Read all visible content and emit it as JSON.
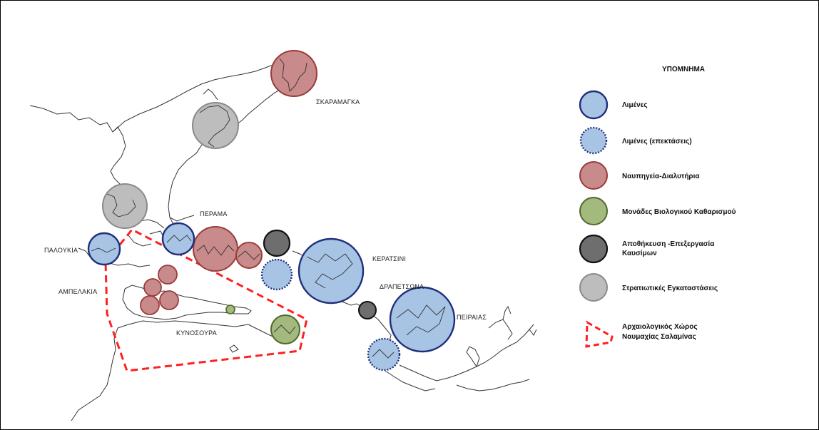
{
  "legend": {
    "title": "ΥΠΟΜΝΗΜΑ",
    "items": [
      {
        "label": "Λιμένες",
        "symbol": "circle-solid",
        "fill": "#a7c4e5",
        "stroke": "#1f2f7a"
      },
      {
        "label": "Λιμένες (επεκτάσεις)",
        "symbol": "circle-dotted",
        "fill": "#a7c4e5",
        "stroke": "#1f2f7a"
      },
      {
        "label": "Ναυπηγεία-Διαλυτήρια",
        "symbol": "circle-solid",
        "fill": "#c88a8a",
        "stroke": "#9a3b3b"
      },
      {
        "label": "Μονάδες Βιολογικού  Καθαρισμού",
        "symbol": "circle-solid",
        "fill": "#a3b97e",
        "stroke": "#4f6a2c"
      },
      {
        "label": "Αποθήκευση -Επεξεργασία",
        "label2": "Καυσίμων",
        "symbol": "circle-solid",
        "fill": "#6e6e6e",
        "stroke": "#111111"
      },
      {
        "label": "Στρατιωτικές Εγκαταστάσεις",
        "symbol": "circle-solid",
        "fill": "#bdbdbd",
        "stroke": "#8a8a8a"
      },
      {
        "label": "Αρχαιολογικός Χώρος",
        "label2": "Ναυμαχίας Σαλαμίνας",
        "symbol": "dashed-polygon",
        "stroke": "#ff2020"
      }
    ]
  },
  "places": {
    "skaramagka": "ΣΚΑΡΑΜΑΓΚΑ",
    "perama": "ΠΕΡΑΜΑ",
    "paloukia": "ΠΑΛΟΥΚΙΑ",
    "keratsini": "ΚΕΡΑΤΣΙΝΙ",
    "ampelakia": "ΑΜΠΕΛΑΚΙΑ",
    "drapetsona": "ΔΡΑΠΕΤΣΩΝΑ",
    "peiraias": "ΠΕΙΡΑΙΑΣ",
    "kynosoura": "ΚΥΝΟΣΟΥΡΑ"
  },
  "colors": {
    "port_fill": "#a7c4e5",
    "port_stroke": "#1f2f7a",
    "shipyard_fill": "#c88a8a",
    "shipyard_stroke": "#9a3b3b",
    "bio_fill": "#a3b97e",
    "bio_stroke": "#4f6a2c",
    "fuel_fill": "#6e6e6e",
    "fuel_stroke": "#111111",
    "military_fill": "#bdbdbd",
    "military_stroke": "#8a8a8a",
    "archaeological_stroke": "#ff2020"
  },
  "map_features": [
    {
      "category": "shipyard",
      "name": "skaramagka-shipyard"
    },
    {
      "category": "military",
      "name": "skaramagka-military"
    },
    {
      "category": "military",
      "name": "salamina-north-military"
    },
    {
      "category": "port",
      "name": "paloukia-port"
    },
    {
      "category": "port",
      "name": "perama-port"
    },
    {
      "category": "shipyard",
      "name": "perama-shipyard-large"
    },
    {
      "category": "shipyard",
      "name": "perama-shipyard-small"
    },
    {
      "category": "fuel",
      "name": "perama-fuel"
    },
    {
      "category": "port-extension",
      "name": "perama-port-extension"
    },
    {
      "category": "port",
      "name": "keratsini-port"
    },
    {
      "category": "fuel",
      "name": "drapetsona-fuel"
    },
    {
      "category": "port",
      "name": "peiraias-port"
    },
    {
      "category": "port-extension",
      "name": "peiraias-port-extension"
    },
    {
      "category": "bio",
      "name": "psyttaleia-bio"
    },
    {
      "category": "bio",
      "name": "kynosoura-bio-small"
    },
    {
      "category": "shipyard",
      "name": "ampelakia-shipyard-1"
    },
    {
      "category": "shipyard",
      "name": "ampelakia-shipyard-2"
    },
    {
      "category": "shipyard",
      "name": "ampelakia-shipyard-3"
    },
    {
      "category": "shipyard",
      "name": "ampelakia-shipyard-4"
    },
    {
      "category": "shipyard",
      "name": "ampelakia-shipyard-5"
    }
  ]
}
